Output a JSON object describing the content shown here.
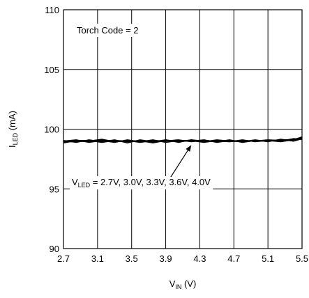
{
  "chart_data": {
    "type": "line",
    "title": "",
    "xlabel": {
      "main": "V",
      "sub": "IN",
      "unit": " (V)"
    },
    "ylabel": {
      "main": "I",
      "sub": "LED",
      "unit": " (mA)"
    },
    "xlim": [
      2.7,
      5.5
    ],
    "ylim": [
      90,
      110
    ],
    "x_ticks": [
      2.7,
      3.1,
      3.5,
      3.9,
      4.3,
      4.7,
      5.1,
      5.5
    ],
    "x_tick_labels": [
      "2.7",
      "3.1",
      "3.5",
      "3.9",
      "4.3",
      "4.7",
      "5.1",
      "5.5"
    ],
    "y_ticks": [
      90,
      95,
      100,
      105,
      110
    ],
    "y_tick_labels": [
      "90",
      "95",
      "100",
      "105",
      "110"
    ],
    "grid": true,
    "annotations": {
      "inset_label": "Torch Code = 2",
      "curve_label": {
        "prefix": "V",
        "sub": "LED",
        "rest": " = 2.7V, 3.0V, 3.3V, 3.6V, 4.0V"
      },
      "arrow_from": [
        3.96,
        96.7
      ],
      "arrow_to": [
        4.2,
        98.9
      ]
    },
    "series": [
      {
        "x": [
          2.7,
          2.85,
          3.0,
          3.15,
          3.3,
          3.45,
          3.6,
          3.75,
          3.9,
          4.05,
          4.2,
          4.35,
          4.5,
          4.65,
          4.8,
          4.95,
          5.1,
          5.25,
          5.4,
          5.5
        ],
        "values": [
          98.95,
          99.05,
          99.0,
          99.15,
          98.95,
          99.05,
          98.9,
          99.05,
          99.0,
          99.1,
          98.95,
          99.05,
          99.0,
          98.95,
          99.05,
          99.0,
          99.1,
          99.05,
          99.15,
          99.3
        ]
      },
      {
        "x": [
          2.7,
          2.85,
          3.0,
          3.15,
          3.3,
          3.45,
          3.6,
          3.75,
          3.9,
          4.05,
          4.2,
          4.35,
          4.5,
          4.65,
          4.8,
          4.95,
          5.1,
          5.25,
          5.4,
          5.5
        ],
        "values": [
          99.05,
          98.9,
          99.1,
          98.95,
          99.1,
          98.85,
          99.1,
          98.95,
          99.1,
          98.95,
          99.1,
          98.95,
          99.1,
          99.0,
          98.95,
          99.1,
          98.95,
          99.15,
          99.0,
          99.2
        ]
      },
      {
        "x": [
          2.7,
          2.85,
          3.0,
          3.15,
          3.3,
          3.45,
          3.6,
          3.75,
          3.9,
          4.05,
          4.2,
          4.35,
          4.5,
          4.65,
          4.8,
          4.95,
          5.1,
          5.25,
          5.4,
          5.5
        ],
        "values": [
          98.9,
          99.0,
          98.95,
          99.1,
          99.0,
          98.95,
          99.05,
          98.85,
          99.05,
          99.0,
          99.0,
          99.1,
          98.9,
          99.05,
          99.0,
          99.05,
          99.0,
          99.1,
          99.1,
          99.25
        ]
      },
      {
        "x": [
          2.7,
          2.85,
          3.0,
          3.15,
          3.3,
          3.45,
          3.6,
          3.75,
          3.9,
          4.05,
          4.2,
          4.35,
          4.5,
          4.65,
          4.8,
          4.95,
          5.1,
          5.25,
          5.4,
          5.5
        ],
        "values": [
          99.0,
          99.1,
          98.9,
          99.05,
          98.9,
          99.1,
          98.95,
          99.1,
          98.9,
          99.05,
          99.05,
          98.9,
          99.05,
          98.95,
          99.1,
          98.95,
          99.05,
          99.0,
          99.2,
          99.15
        ]
      },
      {
        "x": [
          2.7,
          2.85,
          3.0,
          3.15,
          3.3,
          3.45,
          3.6,
          3.75,
          3.9,
          4.05,
          4.2,
          4.35,
          4.5,
          4.65,
          4.8,
          4.95,
          5.1,
          5.25,
          5.4,
          5.5
        ],
        "values": [
          98.85,
          99.05,
          99.05,
          98.9,
          99.05,
          99.0,
          99.0,
          98.9,
          99.1,
          98.9,
          99.1,
          99.0,
          98.95,
          99.1,
          98.9,
          99.05,
          99.05,
          98.95,
          99.1,
          99.35
        ]
      }
    ]
  }
}
